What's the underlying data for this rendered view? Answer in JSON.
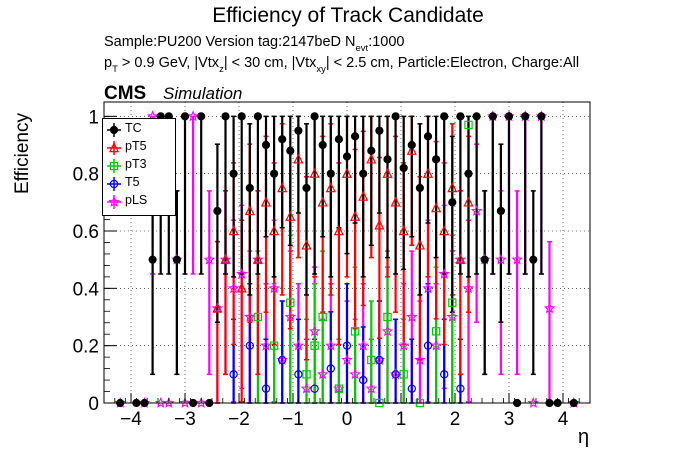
{
  "title": "Efficiency of Track Candidate",
  "subtitle": {
    "sample_line": "Sample:PU200   Version tag:2147beD  N",
    "sample_sub": "evt",
    "sample_tail": ":1000",
    "cuts_p": "p",
    "cuts_p_sub": "T",
    "cuts_a": " > 0.9 GeV, |Vtx",
    "cuts_a_sub": "z",
    "cuts_b": "| < 30 cm, |Vtx",
    "cuts_b_sub": "xy",
    "cuts_c": "| < 2.5 cm, Particle:Electron, Charge:All"
  },
  "cms_label": "CMS",
  "simulation_label": "Simulation",
  "colors": {
    "TC": "#000000",
    "pT5": "#ff0000",
    "pT3": "#00cc00",
    "T5": "#0000ff",
    "pLS": "#ff00ff"
  },
  "chart_data": {
    "type": "scatter",
    "xlabel": "η",
    "ylabel": "Efficiency",
    "xlim": [
      -4.5,
      4.5
    ],
    "ylim": [
      0,
      1.05
    ],
    "x_ticks": [
      -4,
      -3,
      -2,
      -1,
      0,
      1,
      2,
      3,
      4
    ],
    "y_ticks": [
      0,
      0.2,
      0.4,
      0.6,
      0.8,
      1
    ],
    "x_tick_labels": [
      "−4",
      "−3",
      "−2",
      "−1",
      "0",
      "1",
      "2",
      "3",
      "4"
    ],
    "y_tick_labels": [
      "0",
      "0.2",
      "0.4",
      "0.6",
      "0.8",
      "1"
    ],
    "grid": true,
    "legend_position": "top-left",
    "series": [
      {
        "name": "TC",
        "marker": "filled-circle",
        "points": [
          [
            -4.2,
            0
          ],
          [
            -3.9,
            0
          ],
          [
            -3.75,
            0
          ],
          [
            -3.6,
            0.5
          ],
          [
            -3.45,
            1.0
          ],
          [
            -3.3,
            1.0
          ],
          [
            -3.15,
            0.5
          ],
          [
            -3.0,
            1.0
          ],
          [
            -2.85,
            0
          ],
          [
            -2.7,
            1.0
          ],
          [
            -2.55,
            0
          ],
          [
            -2.4,
            0.67
          ],
          [
            -2.25,
            1.0
          ],
          [
            -2.1,
            0.8
          ],
          [
            -1.95,
            1.0
          ],
          [
            -1.8,
            0.75
          ],
          [
            -1.65,
            1.0
          ],
          [
            -1.5,
            0.9
          ],
          [
            -1.35,
            0.8
          ],
          [
            -1.2,
            0.92
          ],
          [
            -1.05,
            0.88
          ],
          [
            -0.9,
            0.95
          ],
          [
            -0.75,
            0.75
          ],
          [
            -0.6,
            1.0
          ],
          [
            -0.45,
            0.9
          ],
          [
            -0.3,
            0.8
          ],
          [
            -0.15,
            0.92
          ],
          [
            0.0,
            0.86
          ],
          [
            0.15,
            0.93
          ],
          [
            0.3,
            0.8
          ],
          [
            0.45,
            0.88
          ],
          [
            0.6,
            0.95
          ],
          [
            0.75,
            0.85
          ],
          [
            0.9,
            1.0
          ],
          [
            1.05,
            0.82
          ],
          [
            1.2,
            0.9
          ],
          [
            1.35,
            0.75
          ],
          [
            1.5,
            0.93
          ],
          [
            1.65,
            0.85
          ],
          [
            1.8,
            1.0
          ],
          [
            1.95,
            0.7
          ],
          [
            2.1,
            1.0
          ],
          [
            2.25,
            0.8
          ],
          [
            2.4,
            1.0
          ],
          [
            2.55,
            0.5
          ],
          [
            2.7,
            1.0
          ],
          [
            2.85,
            0.67
          ],
          [
            3.0,
            1.0
          ],
          [
            3.15,
            0
          ],
          [
            3.3,
            1.0
          ],
          [
            3.45,
            0.5
          ],
          [
            3.6,
            1.0
          ],
          [
            3.75,
            0
          ],
          [
            3.9,
            0
          ],
          [
            4.2,
            0
          ]
        ]
      },
      {
        "name": "pT5",
        "marker": "open-triangle",
        "points": [
          [
            -2.4,
            0.33
          ],
          [
            -2.25,
            0.5
          ],
          [
            -2.1,
            0.6
          ],
          [
            -1.95,
            0.4
          ],
          [
            -1.8,
            0.67
          ],
          [
            -1.65,
            0.5
          ],
          [
            -1.5,
            0.7
          ],
          [
            -1.35,
            0.6
          ],
          [
            -1.2,
            0.75
          ],
          [
            -1.05,
            0.65
          ],
          [
            -0.9,
            0.85
          ],
          [
            -0.75,
            0.55
          ],
          [
            -0.6,
            0.8
          ],
          [
            -0.45,
            0.7
          ],
          [
            -0.3,
            0.75
          ],
          [
            -0.15,
            0.6
          ],
          [
            0.0,
            0.8
          ],
          [
            0.15,
            0.65
          ],
          [
            0.3,
            0.72
          ],
          [
            0.45,
            0.85
          ],
          [
            0.6,
            0.62
          ],
          [
            0.75,
            0.8
          ],
          [
            0.9,
            0.7
          ],
          [
            1.05,
            0.6
          ],
          [
            1.2,
            0.88
          ],
          [
            1.35,
            0.55
          ],
          [
            1.5,
            0.8
          ],
          [
            1.65,
            0.68
          ],
          [
            1.8,
            0.6
          ],
          [
            1.95,
            0.75
          ],
          [
            2.1,
            0.5
          ],
          [
            2.25,
            0.7
          ]
        ]
      },
      {
        "name": "pT3",
        "marker": "open-square",
        "points": [
          [
            -1.65,
            0.3
          ],
          [
            -1.35,
            0.2
          ],
          [
            -1.05,
            0.35
          ],
          [
            -0.75,
            0.1
          ],
          [
            -0.6,
            0.2
          ],
          [
            -0.45,
            0.3
          ],
          [
            -0.15,
            0.05
          ],
          [
            0.15,
            0.25
          ],
          [
            0.45,
            0.15
          ],
          [
            0.6,
            0.0
          ],
          [
            0.75,
            0.3
          ],
          [
            1.05,
            0.1
          ],
          [
            1.35,
            0.0
          ],
          [
            1.65,
            0.25
          ],
          [
            1.95,
            0.35
          ],
          [
            2.25,
            0.97
          ]
        ]
      },
      {
        "name": "T5",
        "marker": "open-circle",
        "points": [
          [
            -2.1,
            0.1
          ],
          [
            -1.8,
            0.2
          ],
          [
            -1.5,
            0.05
          ],
          [
            -1.2,
            0.15
          ],
          [
            -0.9,
            0.1
          ],
          [
            -0.6,
            0.05
          ],
          [
            -0.3,
            0.12
          ],
          [
            0.0,
            0.2
          ],
          [
            0.3,
            0.08
          ],
          [
            0.6,
            0.15
          ],
          [
            0.9,
            0.1
          ],
          [
            1.2,
            0.05
          ],
          [
            1.5,
            0.2
          ],
          [
            1.8,
            0.1
          ],
          [
            2.1,
            0.05
          ]
        ]
      },
      {
        "name": "pLS",
        "marker": "open-star",
        "points": [
          [
            -4.2,
            0
          ],
          [
            -3.75,
            0.0
          ],
          [
            -3.6,
            1.0
          ],
          [
            -3.45,
            0
          ],
          [
            -3.3,
            0
          ],
          [
            -3.15,
            0.5
          ],
          [
            -3.0,
            0
          ],
          [
            -2.85,
            1.0
          ],
          [
            -2.7,
            0
          ],
          [
            -2.55,
            0.5
          ],
          [
            -2.4,
            0.33
          ],
          [
            -2.25,
            0.5
          ],
          [
            -2.1,
            0.4
          ],
          [
            -1.95,
            0.45
          ],
          [
            -1.8,
            0.3
          ],
          [
            -1.65,
            0.5
          ],
          [
            -1.5,
            0.2
          ],
          [
            -1.35,
            0.4
          ],
          [
            -1.2,
            0.15
          ],
          [
            -1.05,
            0.3
          ],
          [
            -0.9,
            0.2
          ],
          [
            -0.75,
            0.05
          ],
          [
            -0.6,
            0.25
          ],
          [
            -0.45,
            0.1
          ],
          [
            -0.3,
            0.2
          ],
          [
            -0.15,
            0.05
          ],
          [
            0.0,
            0.15
          ],
          [
            0.15,
            0.1
          ],
          [
            0.3,
            0.2
          ],
          [
            0.45,
            0.05
          ],
          [
            0.6,
            0.15
          ],
          [
            0.75,
            0.25
          ],
          [
            0.9,
            0.1
          ],
          [
            1.05,
            0.2
          ],
          [
            1.2,
            0.3
          ],
          [
            1.35,
            0.15
          ],
          [
            1.5,
            0.4
          ],
          [
            1.65,
            0.2
          ],
          [
            1.8,
            0.45
          ],
          [
            1.95,
            0.3
          ],
          [
            2.1,
            0.5
          ],
          [
            2.25,
            0.4
          ],
          [
            2.4,
            0.67
          ],
          [
            2.55,
            0.5
          ],
          [
            2.7,
            1.0
          ],
          [
            2.85,
            0.5
          ],
          [
            3.0,
            1.0
          ],
          [
            3.15,
            0.5
          ],
          [
            3.3,
            1.0
          ],
          [
            3.45,
            0
          ],
          [
            3.6,
            1.0
          ],
          [
            3.75,
            0.33
          ],
          [
            4.2,
            0
          ]
        ]
      }
    ]
  }
}
